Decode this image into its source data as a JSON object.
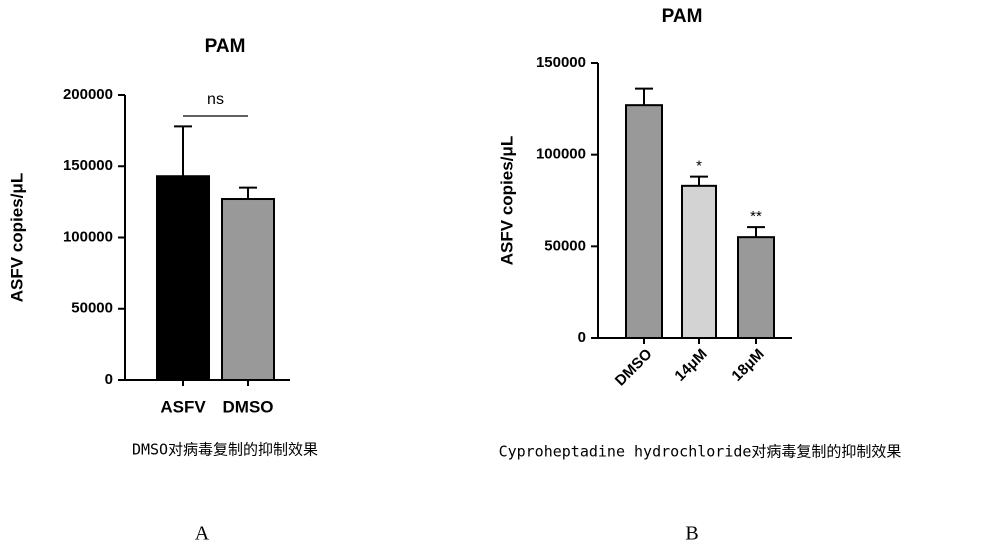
{
  "chart_data": [
    {
      "type": "bar",
      "title": "PAM",
      "y_label": "ASFV copies/μL",
      "categories": [
        "ASFV",
        "DMSO"
      ],
      "values": [
        143000,
        127000
      ],
      "errors": [
        35000,
        8000
      ],
      "colors": [
        "#000000",
        "#999999"
      ],
      "ylim": [
        0,
        200000
      ],
      "yticks": [
        0,
        50000,
        100000,
        150000,
        200000
      ],
      "bracket_label": "ns",
      "caption": "DMSO对病毒复制的抑制效果",
      "panel_label": "A"
    },
    {
      "type": "bar",
      "title": "PAM",
      "y_label": "ASFV copies/μL",
      "categories": [
        "DMSO",
        "14μM",
        "18μM"
      ],
      "values": [
        127000,
        83000,
        55000
      ],
      "errors": [
        9000,
        5000,
        5500
      ],
      "colors": [
        "#999999",
        "#d3d3d3",
        "#999999"
      ],
      "ylim": [
        0,
        150000
      ],
      "yticks": [
        0,
        50000,
        100000,
        150000
      ],
      "annotations": [
        null,
        "*",
        "**"
      ],
      "caption": "Cyproheptadine hydrochloride对病毒复制的抑制效果",
      "panel_label": "B"
    }
  ]
}
